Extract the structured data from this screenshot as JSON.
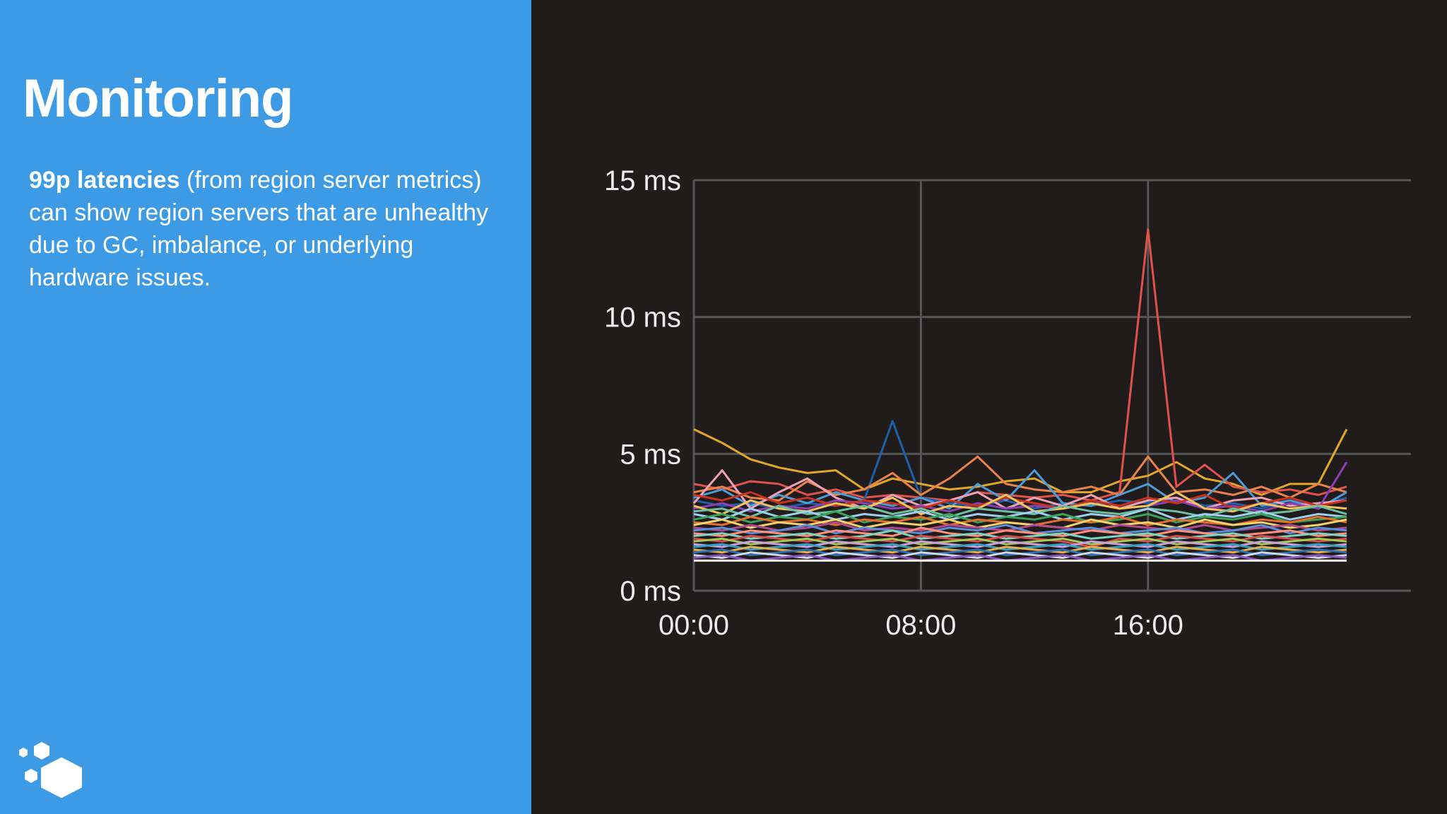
{
  "slide": {
    "title": "Monitoring",
    "body_bold": "99p latencies",
    "body_rest": " (from region server metrics) can show region servers that are unhealthy due to GC, imbalance, or underlying hardware issues."
  },
  "logo": {
    "icon": "hexagon-cluster-icon"
  },
  "colors": {
    "left_panel": "#3d9be6",
    "right_panel": "#201c1c",
    "grid": "#555555",
    "tick_text": "#ececec"
  },
  "chart_data": {
    "type": "line",
    "title": "",
    "xlabel": "",
    "ylabel": "",
    "ylim": [
      0,
      15
    ],
    "xlim": [
      0,
      23
    ],
    "grid": true,
    "y_ticks": [
      {
        "value": 0,
        "label": "0 ms"
      },
      {
        "value": 5,
        "label": "5 ms"
      },
      {
        "value": 10,
        "label": "10 ms"
      },
      {
        "value": 15,
        "label": "15 ms"
      }
    ],
    "x_ticks": [
      {
        "value": 0,
        "label": "00:00"
      },
      {
        "value": 8,
        "label": "08:00"
      },
      {
        "value": 16,
        "label": "16:00"
      }
    ],
    "x": [
      0,
      1,
      2,
      3,
      4,
      5,
      6,
      7,
      8,
      9,
      10,
      11,
      12,
      13,
      14,
      15,
      16,
      17,
      18,
      19,
      20,
      21,
      22,
      23
    ],
    "series": [
      {
        "color": "#e0a823",
        "values": [
          5.9,
          5.4,
          4.8,
          4.5,
          4.3,
          4.4,
          3.7,
          4.1,
          3.9,
          3.7,
          3.8,
          4.0,
          4.1,
          3.6,
          3.6,
          4.0,
          4.2,
          4.7,
          4.1,
          3.9,
          3.5,
          3.9,
          3.9,
          5.9
        ]
      },
      {
        "color": "#e0524b",
        "values": [
          3.9,
          3.7,
          4.0,
          3.9,
          3.5,
          3.7,
          3.4,
          3.5,
          3.4,
          3.3,
          3.6,
          3.5,
          3.4,
          3.5,
          3.3,
          3.6,
          13.2,
          3.8,
          4.6,
          3.8,
          3.6,
          3.7,
          3.5,
          3.8
        ]
      },
      {
        "color": "#1f5fa8",
        "values": [
          3.3,
          3.1,
          3.2,
          3.0,
          3.2,
          3.1,
          3.3,
          6.2,
          3.4,
          3.2,
          3.1,
          3.3,
          3.0,
          3.2,
          3.1,
          3.3,
          3.2,
          3.4,
          3.1,
          3.2,
          3.0,
          3.3,
          3.1,
          3.4
        ]
      },
      {
        "color": "#e9834a",
        "values": [
          3.6,
          3.8,
          3.4,
          3.3,
          4.0,
          3.5,
          3.7,
          4.3,
          3.5,
          4.1,
          4.9,
          3.9,
          3.7,
          3.6,
          3.8,
          3.5,
          4.9,
          3.6,
          3.7,
          3.5,
          3.8,
          3.4,
          3.9,
          3.6
        ]
      },
      {
        "color": "#4c9ad6",
        "values": [
          3.4,
          3.7,
          3.1,
          3.5,
          3.2,
          3.6,
          3.3,
          3.1,
          3.4,
          3.0,
          3.9,
          3.3,
          4.4,
          3.2,
          3.1,
          3.5,
          3.9,
          3.2,
          3.4,
          4.3,
          3.1,
          3.3,
          3.0,
          3.6
        ]
      },
      {
        "color": "#f0a1b5",
        "values": [
          3.2,
          4.4,
          3.0,
          3.6,
          4.1,
          3.4,
          3.0,
          3.5,
          3.1,
          3.3,
          3.6,
          3.0,
          3.4,
          3.1,
          3.5,
          3.0,
          3.3,
          3.4,
          3.0,
          3.3,
          3.4,
          3.1,
          3.2,
          3.3
        ]
      },
      {
        "color": "#8e3fb0",
        "values": [
          3.0,
          3.2,
          2.9,
          3.1,
          3.0,
          3.3,
          3.2,
          3.0,
          3.1,
          2.9,
          3.2,
          3.0,
          3.1,
          3.0,
          3.2,
          3.0,
          3.1,
          3.3,
          3.0,
          3.1,
          2.9,
          3.2,
          3.0,
          4.7
        ]
      },
      {
        "color": "#c7331f",
        "values": [
          3.5,
          3.3,
          3.6,
          3.2,
          3.4,
          3.1,
          3.3,
          3.2,
          3.0,
          3.3,
          3.1,
          3.4,
          3.2,
          3.0,
          3.3,
          3.1,
          3.4,
          3.2,
          3.5,
          3.0,
          3.2,
          3.4,
          3.1,
          3.3
        ]
      },
      {
        "color": "#f5c35a",
        "values": [
          3.1,
          2.8,
          3.3,
          3.0,
          2.9,
          3.2,
          3.0,
          3.4,
          2.8,
          3.1,
          3.0,
          3.5,
          2.9,
          3.0,
          3.2,
          3.0,
          3.1,
          3.6,
          3.0,
          2.9,
          3.2,
          3.0,
          3.1,
          3.0
        ]
      },
      {
        "color": "#6cc1a3",
        "values": [
          2.9,
          3.0,
          2.7,
          3.1,
          2.8,
          2.9,
          3.1,
          2.8,
          3.0,
          2.7,
          3.0,
          2.9,
          2.8,
          3.1,
          2.9,
          2.8,
          3.0,
          2.9,
          2.7,
          3.0,
          2.8,
          2.9,
          3.1,
          2.8
        ]
      },
      {
        "color": "#9fd0f0",
        "values": [
          2.8,
          2.6,
          3.0,
          2.7,
          2.9,
          2.6,
          2.8,
          2.7,
          2.9,
          2.6,
          2.8,
          2.7,
          2.9,
          2.6,
          2.8,
          2.7,
          3.0,
          2.6,
          2.8,
          2.7,
          2.9,
          2.6,
          2.8,
          2.7
        ]
      },
      {
        "color": "#3ba35a",
        "values": [
          2.6,
          2.8,
          2.5,
          2.7,
          2.6,
          2.9,
          2.5,
          2.7,
          2.6,
          2.8,
          2.5,
          2.7,
          2.6,
          2.8,
          2.5,
          2.6,
          2.8,
          2.5,
          2.7,
          2.6,
          2.8,
          2.5,
          2.6,
          2.7
        ]
      },
      {
        "color": "#e86f2b",
        "values": [
          2.5,
          2.4,
          2.7,
          2.5,
          2.6,
          2.4,
          2.6,
          2.5,
          2.7,
          2.4,
          2.6,
          2.5,
          2.4,
          2.6,
          2.5,
          2.7,
          2.4,
          2.6,
          2.5,
          2.4,
          2.6,
          2.5,
          2.7,
          2.5
        ]
      },
      {
        "color": "#f2d36b",
        "values": [
          2.4,
          2.6,
          2.3,
          2.5,
          2.4,
          2.6,
          2.3,
          2.5,
          2.4,
          2.6,
          2.3,
          2.5,
          2.4,
          2.3,
          2.6,
          2.4,
          2.5,
          2.3,
          2.6,
          2.4,
          2.5,
          2.3,
          2.4,
          2.6
        ]
      },
      {
        "color": "#b04a8f",
        "values": [
          2.3,
          2.2,
          2.4,
          2.2,
          2.3,
          2.5,
          2.2,
          2.3,
          2.2,
          2.4,
          2.3,
          2.2,
          2.4,
          2.3,
          2.2,
          2.4,
          2.3,
          2.2,
          2.4,
          2.2,
          2.3,
          2.4,
          2.2,
          2.3
        ]
      },
      {
        "color": "#5a8fd8",
        "values": [
          2.2,
          2.3,
          2.1,
          2.2,
          2.4,
          2.1,
          2.3,
          2.2,
          2.1,
          2.3,
          2.2,
          2.4,
          2.1,
          2.2,
          2.3,
          2.1,
          2.2,
          2.3,
          2.1,
          2.2,
          2.4,
          2.1,
          2.3,
          2.2
        ]
      },
      {
        "color": "#ff8f7a",
        "values": [
          2.1,
          2.0,
          2.2,
          2.1,
          2.0,
          2.2,
          2.1,
          2.0,
          2.3,
          2.1,
          2.0,
          2.2,
          2.1,
          2.0,
          2.2,
          2.1,
          2.0,
          2.2,
          2.1,
          2.0,
          2.1,
          2.2,
          2.0,
          2.1
        ]
      },
      {
        "color": "#7dd3c0",
        "values": [
          2.0,
          2.1,
          1.9,
          2.0,
          2.1,
          1.9,
          2.0,
          2.2,
          1.9,
          2.0,
          2.1,
          1.9,
          2.0,
          2.1,
          1.9,
          2.0,
          2.1,
          1.9,
          2.0,
          2.1,
          1.9,
          2.0,
          2.1,
          2.0
        ]
      },
      {
        "color": "#d94c4c",
        "values": [
          1.9,
          1.8,
          2.0,
          1.9,
          1.8,
          2.0,
          1.9,
          1.8,
          2.0,
          1.9,
          1.8,
          2.0,
          1.9,
          1.8,
          1.6,
          1.9,
          1.8,
          2.0,
          1.9,
          1.8,
          2.0,
          1.9,
          1.8,
          1.9
        ]
      },
      {
        "color": "#a7c957",
        "values": [
          1.8,
          1.9,
          1.7,
          1.8,
          1.9,
          1.7,
          1.8,
          1.9,
          1.7,
          1.8,
          1.9,
          1.7,
          1.8,
          1.9,
          1.7,
          1.8,
          1.9,
          1.7,
          1.8,
          1.9,
          1.7,
          1.8,
          1.9,
          1.8
        ]
      },
      {
        "color": "#c9a0dc",
        "values": [
          1.7,
          1.6,
          1.8,
          1.7,
          1.6,
          1.8,
          1.7,
          1.6,
          1.8,
          1.7,
          1.6,
          1.8,
          1.7,
          1.6,
          1.8,
          1.7,
          1.6,
          1.8,
          1.7,
          1.6,
          1.8,
          1.7,
          1.6,
          1.7
        ]
      },
      {
        "color": "#39a0c4",
        "values": [
          1.6,
          1.7,
          1.5,
          1.6,
          1.7,
          1.5,
          1.6,
          1.7,
          1.5,
          1.6,
          1.7,
          1.5,
          1.6,
          1.7,
          1.5,
          1.6,
          1.7,
          1.5,
          1.6,
          1.7,
          1.5,
          1.6,
          1.7,
          1.6
        ]
      },
      {
        "color": "#e8b04a",
        "values": [
          1.5,
          1.4,
          1.6,
          1.5,
          1.4,
          1.6,
          1.5,
          1.4,
          1.6,
          1.5,
          1.4,
          1.6,
          1.5,
          1.4,
          1.6,
          1.5,
          1.4,
          1.6,
          1.5,
          1.4,
          1.6,
          1.5,
          1.4,
          1.5
        ]
      },
      {
        "color": "#2f6fb3",
        "values": [
          1.4,
          1.5,
          1.3,
          1.4,
          1.5,
          1.3,
          1.4,
          1.5,
          1.3,
          1.4,
          1.5,
          1.3,
          1.4,
          1.5,
          1.3,
          1.4,
          1.5,
          1.3,
          1.4,
          1.5,
          1.3,
          1.4,
          1.5,
          1.4
        ]
      },
      {
        "color": "#cfd8e3",
        "values": [
          1.3,
          1.2,
          1.4,
          1.3,
          1.2,
          1.4,
          1.3,
          1.2,
          1.4,
          1.3,
          1.2,
          1.4,
          1.3,
          1.2,
          1.4,
          1.3,
          1.2,
          1.4,
          1.3,
          1.2,
          1.4,
          1.3,
          1.2,
          1.3
        ]
      },
      {
        "color": "#8a56c2",
        "values": [
          1.2,
          1.3,
          1.1,
          1.2,
          1.3,
          1.1,
          1.2,
          1.3,
          1.1,
          1.2,
          1.3,
          1.1,
          1.2,
          1.3,
          1.1,
          1.2,
          1.3,
          1.1,
          1.2,
          1.3,
          1.1,
          1.2,
          1.3,
          1.2
        ]
      },
      {
        "color": "#f4f0e6",
        "values": [
          1.1,
          1.1,
          1.1,
          1.1,
          1.1,
          1.1,
          1.1,
          1.1,
          1.1,
          1.1,
          1.1,
          1.1,
          1.1,
          1.1,
          1.1,
          1.1,
          1.1,
          1.1,
          1.1,
          1.1,
          1.1,
          1.1,
          1.1,
          1.1
        ]
      }
    ]
  }
}
